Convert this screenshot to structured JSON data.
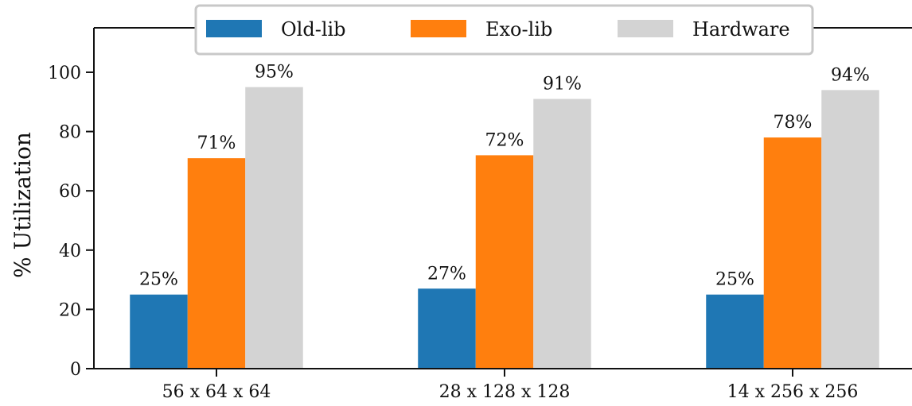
{
  "chart_data": {
    "type": "bar",
    "categories": [
      "56 x 64 x 64",
      "28 x 128 x 128",
      "14 x 256 x 256"
    ],
    "series": [
      {
        "name": "Old-lib",
        "values": [
          25,
          27,
          25
        ],
        "color": "#1f77b4",
        "labels": [
          "25%",
          "27%",
          "25%"
        ]
      },
      {
        "name": "Exo-lib",
        "values": [
          71,
          72,
          78
        ],
        "color": "#ff7f0e",
        "labels": [
          "71%",
          "72%",
          "78%"
        ]
      },
      {
        "name": "Hardware",
        "values": [
          95,
          91,
          94
        ],
        "color": "#d3d3d3",
        "labels": [
          "95%",
          "91%",
          "94%"
        ]
      }
    ],
    "ylabel": "% Utilization",
    "xlabel": "",
    "title": "",
    "ylim": [
      0,
      115
    ],
    "yticks": [
      0,
      20,
      40,
      60,
      80,
      100
    ],
    "grid": false,
    "legend_position": "top-center"
  }
}
